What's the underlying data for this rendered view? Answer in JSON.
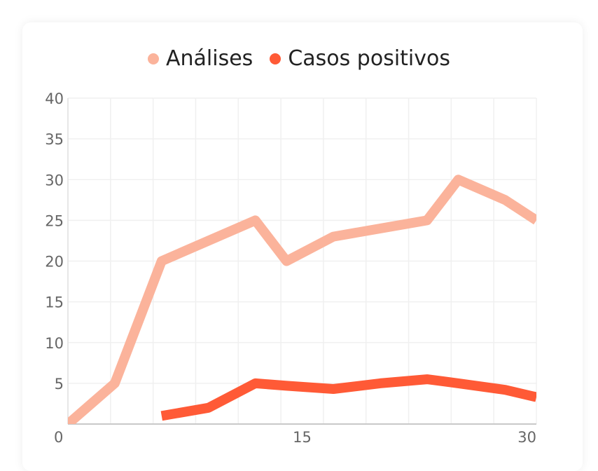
{
  "chart_data": {
    "type": "line",
    "x": [
      0,
      3,
      6,
      9,
      12,
      14,
      17,
      20,
      23,
      25,
      28,
      30
    ],
    "series": [
      {
        "name": "Análises",
        "color": "#fbb39b",
        "values": [
          0,
          5,
          20,
          22.5,
          25,
          20,
          23,
          24,
          25,
          30,
          27.5,
          25
        ]
      },
      {
        "name": "Casos positivos",
        "color": "#ff5a36",
        "values": [
          null,
          null,
          1,
          2,
          5,
          4.7,
          4.3,
          5,
          5.5,
          5,
          4.2,
          3.3
        ]
      }
    ],
    "xlim": [
      0,
      30
    ],
    "ylim": [
      0,
      40
    ],
    "yticks": [
      40,
      35,
      30,
      25,
      20,
      15,
      10,
      5
    ],
    "xticks": [
      0,
      15,
      30
    ],
    "grid": true,
    "legend_position": "top-center"
  }
}
